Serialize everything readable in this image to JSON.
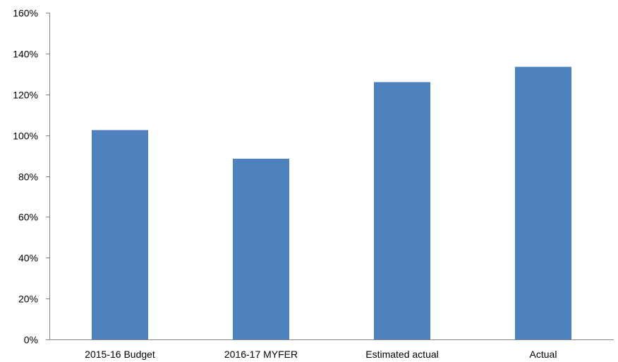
{
  "chart_data": {
    "type": "bar",
    "title": "",
    "xlabel": "",
    "ylabel": "",
    "categories": [
      "2015-16 Budget",
      "2016-17 MYFER",
      "Estimated actual",
      "Actual"
    ],
    "values": [
      102.5,
      88.5,
      126,
      133.5
    ],
    "value_format": "percent",
    "ylim": [
      0,
      160
    ],
    "y_ticks": [
      0,
      20,
      40,
      60,
      80,
      100,
      120,
      140,
      160
    ],
    "y_tick_labels": [
      "0%",
      "20%",
      "40%",
      "60%",
      "80%",
      "100%",
      "120%",
      "140%",
      "160%"
    ],
    "grid": false,
    "legend": "none",
    "bar_color": "#4F81BD",
    "axis_color": "#868686"
  }
}
